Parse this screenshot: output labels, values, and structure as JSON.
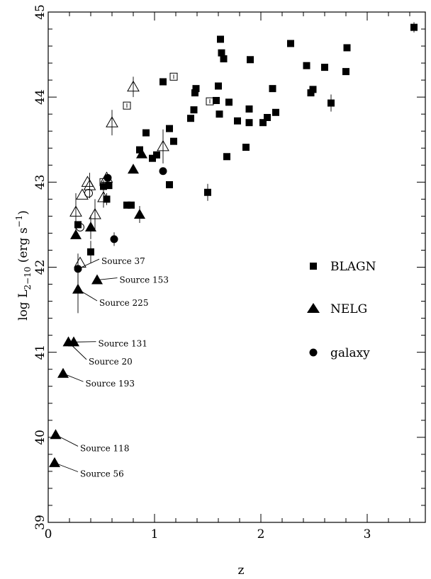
{
  "chart_data": {
    "type": "scatter",
    "xlabel": "z",
    "ylabel_main": "log L",
    "ylabel_sub": "2−10",
    "ylabel_unit_open": " (erg s",
    "ylabel_unit_sup": "−1",
    "ylabel_unit_close": ")",
    "xlim": [
      0,
      3.55
    ],
    "ylim": [
      39,
      45
    ],
    "xticks": [
      0,
      1,
      2,
      3
    ],
    "xtick_labels": [
      "0",
      "1",
      "2",
      "3"
    ],
    "yticks": [
      39,
      40,
      41,
      42,
      43,
      44,
      45
    ],
    "ytick_labels": [
      "39",
      "40",
      "41",
      "42",
      "43",
      "44",
      "45"
    ],
    "legend": {
      "entries": [
        {
          "label": "BLAGN",
          "marker": "square-filled"
        },
        {
          "label": "NELG",
          "marker": "triangle-filled"
        },
        {
          "label": "galaxy",
          "marker": "circle-filled"
        }
      ]
    },
    "series": [
      {
        "name": "BLAGN",
        "marker": "square-filled",
        "points": [
          [
            0.28,
            42.5
          ],
          [
            0.4,
            42.18
          ],
          [
            0.52,
            42.95
          ],
          [
            0.55,
            42.8
          ],
          [
            0.57,
            42.96
          ],
          [
            0.74,
            42.73
          ],
          [
            0.78,
            42.73
          ],
          [
            0.86,
            43.38
          ],
          [
            0.92,
            43.58
          ],
          [
            0.98,
            43.28
          ],
          [
            1.02,
            43.32
          ],
          [
            1.08,
            44.18
          ],
          [
            1.14,
            43.63
          ],
          [
            1.14,
            42.97
          ],
          [
            1.18,
            43.48
          ],
          [
            1.34,
            43.75
          ],
          [
            1.37,
            43.85
          ],
          [
            1.38,
            44.05
          ],
          [
            1.39,
            44.1
          ],
          [
            1.5,
            42.88
          ],
          [
            1.58,
            43.96
          ],
          [
            1.6,
            44.13
          ],
          [
            1.61,
            43.8
          ],
          [
            1.62,
            44.68
          ],
          [
            1.63,
            44.52
          ],
          [
            1.65,
            44.45
          ],
          [
            1.68,
            43.3
          ],
          [
            1.7,
            43.94
          ],
          [
            1.78,
            43.72
          ],
          [
            1.86,
            43.41
          ],
          [
            1.89,
            43.86
          ],
          [
            1.89,
            43.7
          ],
          [
            1.9,
            44.44
          ],
          [
            2.02,
            43.7
          ],
          [
            2.06,
            43.76
          ],
          [
            2.11,
            44.1
          ],
          [
            2.14,
            43.82
          ],
          [
            2.28,
            44.63
          ],
          [
            2.43,
            44.37
          ],
          [
            2.47,
            44.05
          ],
          [
            2.49,
            44.09
          ],
          [
            2.6,
            44.35
          ],
          [
            2.66,
            43.93
          ],
          [
            2.8,
            44.3
          ],
          [
            2.81,
            44.58
          ],
          [
            3.44,
            44.82
          ]
        ],
        "errors": [
          [
            0.4,
            0.13
          ],
          [
            0.55,
            0.07
          ],
          [
            1.5,
            0.1
          ],
          [
            2.66,
            0.1
          ],
          [
            3.44,
            0.06
          ]
        ]
      },
      {
        "name": "BLAGN-open",
        "marker": "square-open",
        "points": [
          [
            0.52,
            43.0
          ],
          [
            0.74,
            43.9
          ],
          [
            1.18,
            44.24
          ],
          [
            1.52,
            43.95
          ]
        ]
      },
      {
        "name": "NELG",
        "marker": "triangle-filled",
        "points": [
          [
            0.06,
            39.7
          ],
          [
            0.07,
            40.03
          ],
          [
            0.14,
            40.75
          ],
          [
            0.19,
            41.12
          ],
          [
            0.24,
            41.12
          ],
          [
            0.26,
            42.38
          ],
          [
            0.28,
            41.74
          ],
          [
            0.4,
            42.47
          ],
          [
            0.46,
            41.85
          ],
          [
            0.8,
            43.15
          ],
          [
            0.86,
            42.62
          ],
          [
            0.88,
            43.33
          ]
        ],
        "errors": [
          [
            0.28,
            0.28,
            0.28
          ],
          [
            0.4,
            0.14,
            0.14
          ],
          [
            0.86,
            0.1,
            0.1
          ]
        ]
      },
      {
        "name": "NELG-open",
        "marker": "triangle-open",
        "points": [
          [
            0.26,
            42.65
          ],
          [
            0.3,
            42.05
          ],
          [
            0.32,
            42.85
          ],
          [
            0.37,
            43.0
          ],
          [
            0.39,
            42.96
          ],
          [
            0.44,
            42.62
          ],
          [
            0.52,
            42.82
          ],
          [
            0.55,
            43.05
          ],
          [
            0.6,
            43.7
          ],
          [
            0.8,
            44.12
          ],
          [
            1.08,
            43.42
          ]
        ],
        "errors": [
          [
            0.26,
            0.22,
            0.22
          ],
          [
            0.39,
            0.15,
            0.15
          ],
          [
            0.44,
            0.18,
            0.18
          ],
          [
            0.52,
            0.12,
            0.12
          ],
          [
            0.6,
            0.15,
            0.15
          ],
          [
            0.8,
            0.12,
            0.12
          ],
          [
            1.08,
            0.2,
            0.2
          ]
        ]
      },
      {
        "name": "galaxy",
        "marker": "circle-filled",
        "points": [
          [
            0.28,
            41.98
          ],
          [
            0.56,
            43.05
          ],
          [
            0.62,
            42.33
          ],
          [
            1.08,
            43.13
          ]
        ],
        "errors": [
          [
            0.28,
            0.18,
            0.18
          ],
          [
            0.62,
            0.08,
            0.08
          ]
        ]
      },
      {
        "name": "galaxy-open",
        "marker": "circle-open",
        "points": [
          [
            0.3,
            42.47
          ],
          [
            0.38,
            42.87
          ]
        ]
      }
    ],
    "annotations": [
      {
        "text": "Source 37",
        "x": 0.28,
        "y": 41.98,
        "lx": 0.5,
        "ly": 42.07
      },
      {
        "text": "Source 153",
        "x": 0.46,
        "y": 41.85,
        "lx": 0.67,
        "ly": 41.85
      },
      {
        "text": "Source 225",
        "x": 0.28,
        "y": 41.74,
        "lx": 0.48,
        "ly": 41.58
      },
      {
        "text": "Source 131",
        "x": 0.24,
        "y": 41.12,
        "lx": 0.47,
        "ly": 41.1
      },
      {
        "text": "Source 20",
        "x": 0.19,
        "y": 41.12,
        "lx": 0.38,
        "ly": 40.89
      },
      {
        "text": "Source 193",
        "x": 0.14,
        "y": 40.75,
        "lx": 0.35,
        "ly": 40.63
      },
      {
        "text": "Source 118",
        "x": 0.07,
        "y": 40.03,
        "lx": 0.3,
        "ly": 39.87
      },
      {
        "text": "Source 56",
        "x": 0.06,
        "y": 39.7,
        "lx": 0.3,
        "ly": 39.57
      }
    ]
  }
}
